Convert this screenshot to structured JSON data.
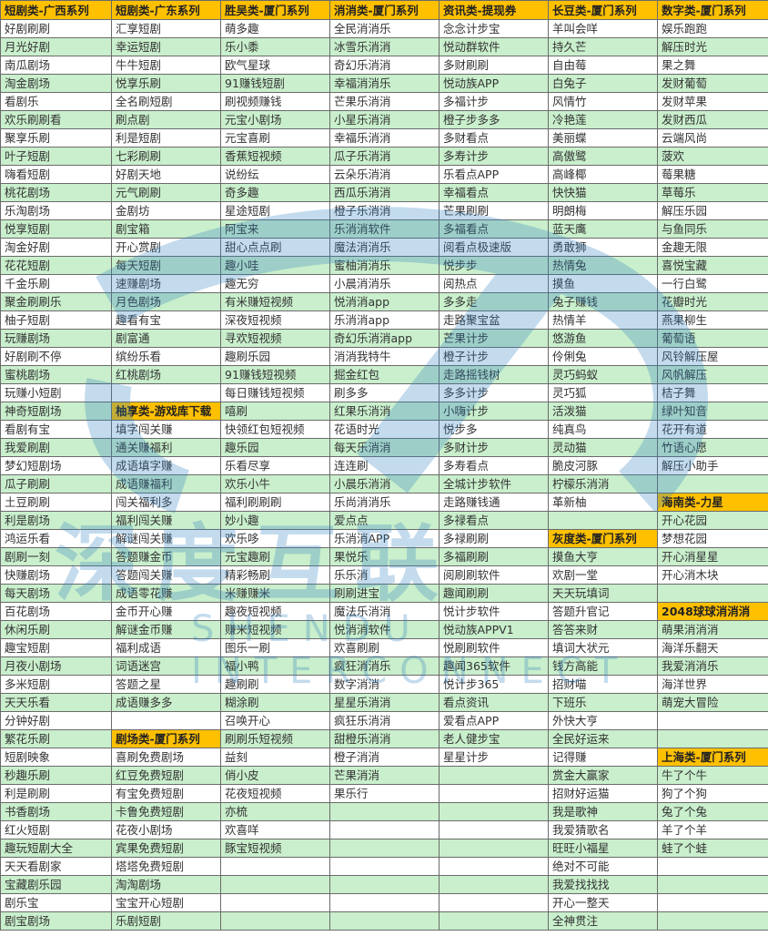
{
  "colors": {
    "header": "#ffc000",
    "row_alt": "#c9efcc",
    "row": "#ffffff",
    "watermark": "#2d7fc1"
  },
  "watermark": {
    "text": "深度互联",
    "sub": "SHENDU INTERCONNECT"
  },
  "table": {
    "headers": [
      "短剧类-广西系列",
      "短剧类-广东系列",
      "胜吴类-厦门系列",
      "消消类-厦门系列",
      "资讯类-提现券",
      "长豆类-厦门系列",
      "数字类-厦门系列"
    ],
    "section_headers": [
      "柚享类-游戏库下载",
      "剧场类-厦门系列",
      "灰度类-厦门系列",
      "海南类-力星",
      "2048球球消消消",
      "上海类-厦门系列"
    ],
    "rows": [
      [
        "好剧刷刷",
        "汇享短剧",
        "萌多趣",
        "全民消消乐",
        "念念计步宝",
        "羊叫会咩",
        "娱乐跑跑"
      ],
      [
        "月光好剧",
        "幸运短剧",
        "乐小黍",
        "冰雪乐消消",
        "悦动群软件",
        "持久芒",
        "解压时光"
      ],
      [
        "南瓜剧场",
        "牛牛短剧",
        "欧气星球",
        "奇幻乐消消",
        "多财刷刷",
        "自由莓",
        "果之舞"
      ],
      [
        "淘金剧场",
        "悦享乐刷",
        "91赚钱短剧",
        "幸福消消乐",
        "悦动族APP",
        "白兔子",
        "发财葡萄"
      ],
      [
        "看剧乐",
        "全名刷短剧",
        "刷视频赚钱",
        "芒果乐消消",
        "多福计步",
        "风情竹",
        "发财苹果"
      ],
      [
        "欢乐刷刷看",
        "刷点剧",
        "元宝小剧场",
        "小星乐消消",
        "橙子步多多",
        "冷艳莲",
        "发财西瓜"
      ],
      [
        "聚享乐刷",
        "利是短剧",
        "元宝喜刷",
        "幸福乐消消",
        "多财看点",
        "美丽蝶",
        "云端风尚"
      ],
      [
        "叶子短剧",
        "七彩刷刷",
        "香蕉短视频",
        "瓜子乐消消",
        "多寿计步",
        "高傲鹭",
        "菠欢"
      ],
      [
        "嗨看短剧",
        "好剧天地",
        "说纷纭",
        "云朵乐消消",
        "乐看点APP",
        "高峰椰",
        "莓果糖"
      ],
      [
        "桃花剧场",
        "元气刷刷",
        "奇多趣",
        "西瓜乐消消",
        "幸福看点",
        "快快猫",
        "草莓乐"
      ],
      [
        "乐淘剧场",
        "金剧坊",
        "星途短剧",
        "橙子乐消消",
        "芒果刷刷",
        "明朗梅",
        "解压乐园"
      ],
      [
        "悦享短剧",
        "剧宝箱",
        "阿宝来",
        "乐消消软件",
        "多福看点",
        "蓝天鹰",
        "与鱼同乐"
      ],
      [
        "淘金好剧",
        "开心赏剧",
        "甜心点点刷",
        "魔法消消乐",
        "阅看点极速版",
        "勇敢狮",
        "金趣无限"
      ],
      [
        "花花短剧",
        "每天短剧",
        "趣小哇",
        "蜜柚消消乐",
        "悦步步",
        "热情兔",
        "喜悦宝藏"
      ],
      [
        "千金乐刷",
        "速赚剧场",
        "趣无穷",
        "小晨消消乐",
        "阅热点",
        "摸鱼",
        "一行白鹭"
      ],
      [
        "聚金刷刷乐",
        "月色剧场",
        "有米赚短视频",
        "悦消消app",
        "多多走",
        "兔子赚钱",
        "花瓣时光"
      ],
      [
        "柚子短剧",
        "趣看有宝",
        "深夜短视频",
        "乐消消app",
        "走路聚宝盆",
        "热情羊",
        "燕果柳生"
      ],
      [
        "玩赚剧场",
        "剧富通",
        "寻欢短视频",
        "奇幻乐消消app",
        "芒果计步",
        "悠游鱼",
        "葡萄语"
      ],
      [
        "好剧刷不停",
        "缤纷乐看",
        "趣刷乐园",
        "消消我特牛",
        "橙子计步",
        "伶俐兔",
        "风铃解压屋"
      ],
      [
        "蜜桃剧场",
        "红桃剧场",
        "91赚钱短视频",
        "掘金红包",
        "走路摇钱树",
        "灵巧蚂蚁",
        "风帆解压"
      ],
      [
        "玩赚小短剧",
        "",
        "每日赚钱短视频",
        "刷多多",
        "多多计步",
        "灵巧狐",
        "桔子舞"
      ],
      [
        "神奇短剧场",
        "柚享类-游戏库下载",
        "嘻刷",
        "红果乐消消",
        "小嗨计步",
        "活泼猫",
        "绿叶知音"
      ],
      [
        "看剧有宝",
        "填字闯关赚",
        "快领红包短视频",
        "花语时光",
        "悦步多",
        "纯真鸟",
        "花开有道"
      ],
      [
        "我爱刷剧",
        "通关赚福利",
        "趣乐园",
        "每天乐消消",
        "多财计步",
        "灵动猫",
        "竹语心愿"
      ],
      [
        "梦幻短剧场",
        "成语填字赚",
        "乐看尽享",
        "连连刷",
        "多寿看点",
        "脆皮河豚",
        "解压小助手"
      ],
      [
        "瓜子刷刷",
        "成语赚福利",
        "欢乐小牛",
        "小晨乐消消",
        "全城计步软件",
        "柠檬乐消消",
        ""
      ],
      [
        "土豆刷刷",
        "闯关福利多",
        "福利刷刷刷",
        "乐尚消消乐",
        "走路赚钱通",
        "革新柚",
        "海南类-力星"
      ],
      [
        "利是剧场",
        "福利闯关赚",
        "妙小趣",
        "爱点点",
        "多禄看点",
        "",
        "开心花园"
      ],
      [
        "鸿运乐看",
        "解谜闯关赚",
        "欢乐哆",
        "乐消消APP",
        "多禄刷刷",
        "灰度类-厦门系列",
        "梦想花园"
      ],
      [
        "剧刷一刻",
        "答题赚金币",
        "元宝趣刷",
        "果悦乐",
        "多福刷刷",
        "摸鱼大亨",
        "开心消星星"
      ],
      [
        "快赚剧场",
        "答题闯关赚",
        "精彩畅刷",
        "乐乐消",
        "阅刷刷软件",
        "欢剧一堂",
        "开心消木块"
      ],
      [
        "每天剧场",
        "成语零花赚",
        "米赚赚米",
        "刷刷进宝",
        "趣闻刷刷",
        "天天玩填词",
        ""
      ],
      [
        "百花剧场",
        "金币开心赚",
        "趣夜短视频",
        "魔法乐消消",
        "悦计步软件",
        "答题升官记",
        "2048球球消消消"
      ],
      [
        "休闲乐刷",
        "解谜金币赚",
        "赚米短视频",
        "悦消消软件",
        "悦动族APPV1",
        "答答来财",
        "萌果消消消"
      ],
      [
        "趣宝短剧",
        "福利成语",
        "图乐一刷",
        "欢喜刷刷",
        "悦刷刷软件",
        "填词大状元",
        "海洋乐翻天"
      ],
      [
        "月夜小剧场",
        "词语迷宫",
        "福小鸭",
        "疯狂消消乐",
        "趣闻365软件",
        "钱方高能",
        "我爱消消乐"
      ],
      [
        "多米短剧",
        "答题之星",
        "趣刷刷",
        "数字消消",
        "悦计步365",
        "招财喵",
        "海洋世界"
      ],
      [
        "天天乐看",
        "成语赚多多",
        "糊涂刷",
        "星星乐消消",
        "看点资讯",
        "下班乐",
        "萌宠大冒险"
      ],
      [
        "分钟好剧",
        "",
        "召唤开心",
        "疯狂乐消消",
        "爱看点APP",
        "外快大亨",
        ""
      ],
      [
        "繁花乐刷",
        "剧场类-厦门系列",
        "刷刷乐短视频",
        "甜橙乐消消",
        "老人健步宝",
        "全民好运来",
        ""
      ],
      [
        "短剧映象",
        "喜刷免费剧场",
        "益刻",
        "橙子消消",
        "星星计步",
        "记得赚",
        "上海类-厦门系列"
      ],
      [
        "秒趣乐刷",
        "红豆免费短剧",
        "俏小皮",
        "芒果消消",
        "",
        "赏金大赢家",
        "牛了个牛"
      ],
      [
        "利是刷刷",
        "有宝免费短剧",
        "花夜短视频",
        "果乐行",
        "",
        "招财好运猫",
        "狗了个狗"
      ],
      [
        "书香剧场",
        "卡鲁免费短剧",
        "亦梳",
        "",
        "",
        "我是歌神",
        "兔了个兔"
      ],
      [
        "红火短剧",
        "花夜小剧场",
        "欢喜咩",
        "",
        "",
        "我爱猜歌名",
        "羊了个羊"
      ],
      [
        "趣玩短剧大全",
        "宾果免费短剧",
        "豚宝短视频",
        "",
        "",
        "旺旺小福星",
        "蛙了个蛙"
      ],
      [
        "天天看剧家",
        "塔塔免费短剧",
        "",
        "",
        "",
        "绝对不可能",
        ""
      ],
      [
        "宝藏剧乐园",
        "淘淘剧场",
        "",
        "",
        "",
        "我爱找找找",
        ""
      ],
      [
        "剧乐宝",
        "宝宝开心短剧",
        "",
        "",
        "",
        "开心一整天",
        ""
      ],
      [
        "剧宝剧场",
        "乐剧短剧",
        "",
        "",
        "",
        "全神贯注",
        ""
      ]
    ]
  }
}
